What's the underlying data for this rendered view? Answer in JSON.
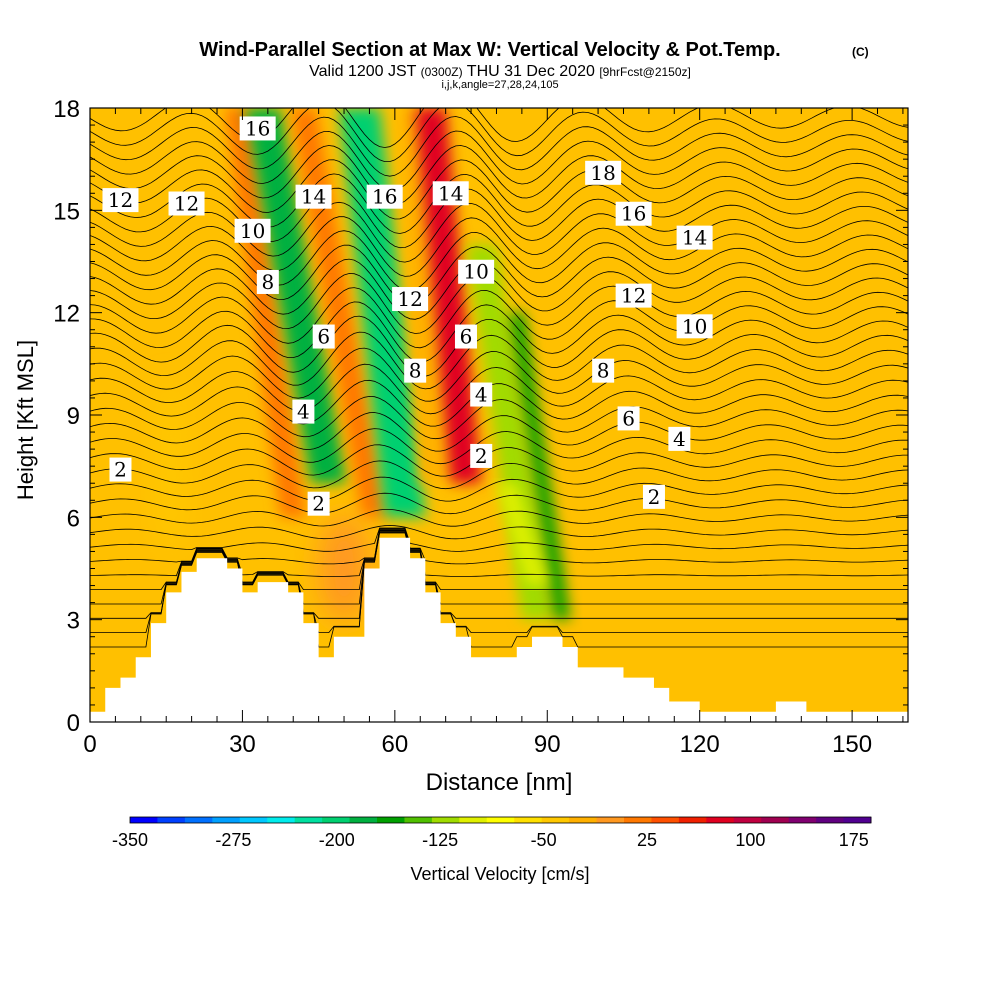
{
  "chart_data": {
    "type": "heatmap",
    "title": "Wind-Parallel Section at Max W: Vertical Velocity & Pot.Temp.",
    "title_mark": "(C)",
    "subtitle_parts": [
      "Valid 1200 JST",
      "(0300Z)",
      "THU 31 Dec 2020",
      "[9hrFcst@2150z]"
    ],
    "subtitle2": "i,j,k,angle=27,28,24,105",
    "xlabel": "Distance [nm]",
    "ylabel": "Height [Kft MSL]",
    "xlim": [
      0,
      161
    ],
    "ylim": [
      0,
      18
    ],
    "xticks": [
      "0",
      "30",
      "60",
      "90",
      "120",
      "150"
    ],
    "yticks": [
      "0",
      "3",
      "6",
      "9",
      "12",
      "15",
      "18"
    ],
    "colorbar": {
      "label": "Vertical Velocity [cm/s]",
      "min": -350,
      "max": 187.5,
      "step": 25,
      "tick_labels": [
        "-350",
        "-275",
        "-200",
        "-125",
        "-50",
        "25",
        "100",
        "175"
      ],
      "colors": [
        "#0000ff",
        "#0040ff",
        "#0070ff",
        "#00a0ff",
        "#00c8ff",
        "#00ecec",
        "#00e0a0",
        "#00d070",
        "#00b040",
        "#00a000",
        "#50c000",
        "#a0dc00",
        "#e0f000",
        "#ffff00",
        "#ffe000",
        "#ffc800",
        "#ffb000",
        "#ff9820",
        "#ff7800",
        "#ff5000",
        "#f02000",
        "#e00020",
        "#c00040",
        "#a00050",
        "#800070",
        "#600080",
        "#500090"
      ]
    },
    "terrain_profile": {
      "x": [
        0,
        3,
        6,
        9,
        12,
        15,
        18,
        21,
        24,
        27,
        30,
        33,
        36,
        39,
        42,
        45,
        48,
        51,
        54,
        57,
        60,
        63,
        66,
        69,
        72,
        75,
        78,
        81,
        84,
        87,
        90,
        93,
        96,
        99,
        102,
        105,
        108,
        111,
        114,
        117,
        120,
        123,
        126,
        129,
        132,
        135,
        138,
        141,
        144,
        147,
        150,
        153,
        156,
        159,
        161
      ],
      "height": [
        0.3,
        1.0,
        1.3,
        1.9,
        2.9,
        3.8,
        4.4,
        4.8,
        4.8,
        4.5,
        3.8,
        4.1,
        4.1,
        3.8,
        2.9,
        1.9,
        2.5,
        2.5,
        4.5,
        5.4,
        5.4,
        4.8,
        3.8,
        2.9,
        2.5,
        1.9,
        1.9,
        1.9,
        2.2,
        2.5,
        2.5,
        2.2,
        1.6,
        1.6,
        1.6,
        1.3,
        1.3,
        1.0,
        0.6,
        0.6,
        0.3,
        0.3,
        0.3,
        0.3,
        0.3,
        0.6,
        0.6,
        0.3,
        0.3,
        0.3,
        0.3,
        0.3,
        0.3,
        0.3,
        0.3
      ]
    },
    "vertical_velocity_features": [
      {
        "kind": "band",
        "x_bottom": 40,
        "x_top": 29,
        "y_bottom": 6,
        "y_top": 18,
        "width": 5,
        "value": 100
      },
      {
        "kind": "band",
        "x_bottom": 47,
        "x_top": 34,
        "y_bottom": 7,
        "y_top": 18,
        "width": 7,
        "value": -150
      },
      {
        "kind": "band",
        "x_bottom": 56,
        "x_top": 42,
        "y_bottom": 6,
        "y_top": 18,
        "width": 5,
        "value": 100
      },
      {
        "kind": "band",
        "x_bottom": 62,
        "x_top": 53,
        "y_bottom": 6,
        "y_top": 18,
        "width": 8,
        "value": -175
      },
      {
        "kind": "band",
        "x_bottom": 67,
        "x_top": 63,
        "y_bottom": 7,
        "y_top": 18,
        "width": 4,
        "value": 50
      },
      {
        "kind": "band",
        "x_bottom": 74,
        "x_top": 67,
        "y_bottom": 7,
        "y_top": 18,
        "width": 6,
        "value": 175
      },
      {
        "kind": "band",
        "x_bottom": 88,
        "x_top": 77,
        "y_bottom": 3,
        "y_top": 14,
        "width": 6,
        "value": -75
      },
      {
        "kind": "band",
        "x_bottom": 93,
        "x_top": 84,
        "y_bottom": 3,
        "y_top": 12,
        "width": 3,
        "value": -125
      },
      {
        "kind": "band",
        "x_bottom": 88,
        "x_top": 82,
        "y_bottom": 4,
        "y_top": 7,
        "width": 4,
        "value": -50
      },
      {
        "kind": "blob",
        "x": 50,
        "y": 4.5,
        "rx": 5,
        "ry": 1.6,
        "value": 75
      },
      {
        "kind": "blob",
        "x": 16,
        "y": 7.5,
        "rx": 3,
        "ry": 2.5,
        "value": 25
      }
    ],
    "theta_contours": {
      "label_values": [
        "2",
        "4",
        "6",
        "8",
        "10",
        "12",
        "14",
        "16",
        "18"
      ],
      "labels": [
        {
          "text": "2",
          "x": 6,
          "y": 7.4
        },
        {
          "text": "2",
          "x": 45,
          "y": 6.4
        },
        {
          "text": "2",
          "x": 77,
          "y": 7.8
        },
        {
          "text": "2",
          "x": 111,
          "y": 6.6
        },
        {
          "text": "4",
          "x": 42,
          "y": 9.1
        },
        {
          "text": "4",
          "x": 77,
          "y": 9.6
        },
        {
          "text": "4",
          "x": 116,
          "y": 8.3
        },
        {
          "text": "6",
          "x": 46,
          "y": 11.3
        },
        {
          "text": "6",
          "x": 74,
          "y": 11.3
        },
        {
          "text": "6",
          "x": 106,
          "y": 8.9
        },
        {
          "text": "8",
          "x": 35,
          "y": 12.9
        },
        {
          "text": "8",
          "x": 64,
          "y": 10.3
        },
        {
          "text": "8",
          "x": 101,
          "y": 10.3
        },
        {
          "text": "10",
          "x": 32,
          "y": 14.4
        },
        {
          "text": "10",
          "x": 76,
          "y": 13.2
        },
        {
          "text": "10",
          "x": 119,
          "y": 11.6
        },
        {
          "text": "12",
          "x": 6,
          "y": 15.3
        },
        {
          "text": "12",
          "x": 19,
          "y": 15.2
        },
        {
          "text": "12",
          "x": 63,
          "y": 12.4
        },
        {
          "text": "12",
          "x": 107,
          "y": 12.5
        },
        {
          "text": "14",
          "x": 44,
          "y": 15.4
        },
        {
          "text": "14",
          "x": 71,
          "y": 15.5
        },
        {
          "text": "14",
          "x": 119,
          "y": 14.2
        },
        {
          "text": "16",
          "x": 33,
          "y": 17.4
        },
        {
          "text": "16",
          "x": 58,
          "y": 15.4
        },
        {
          "text": "16",
          "x": 107,
          "y": 14.9
        },
        {
          "text": "18",
          "x": 101,
          "y": 16.1
        }
      ]
    }
  }
}
